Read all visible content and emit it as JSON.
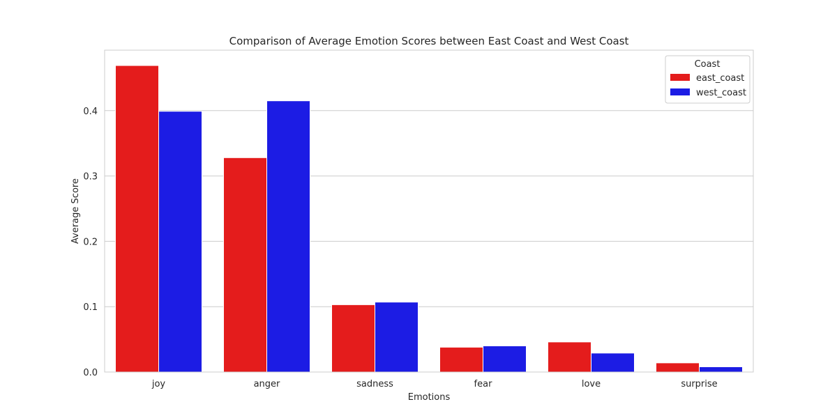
{
  "chart_data": {
    "type": "bar",
    "title": "Comparison of Average Emotion Scores between East Coast and West Coast",
    "xlabel": "Emotions",
    "ylabel": "Average Score",
    "categories": [
      "joy",
      "anger",
      "sadness",
      "fear",
      "love",
      "surprise"
    ],
    "series": [
      {
        "name": "east_coast",
        "color": "#e41c1c",
        "values": [
          0.469,
          0.328,
          0.103,
          0.038,
          0.046,
          0.014
        ]
      },
      {
        "name": "west_coast",
        "color": "#1c1ce4",
        "values": [
          0.399,
          0.415,
          0.107,
          0.04,
          0.029,
          0.008
        ]
      }
    ],
    "ylim": [
      0,
      0.4925
    ],
    "yticks": [
      0.0,
      0.1,
      0.2,
      0.3,
      0.4
    ],
    "ytick_labels": [
      "0.0",
      "0.1",
      "0.2",
      "0.3",
      "0.4"
    ],
    "grid": "horizontal",
    "legend": {
      "title": "Coast",
      "placement": "top-right"
    }
  }
}
